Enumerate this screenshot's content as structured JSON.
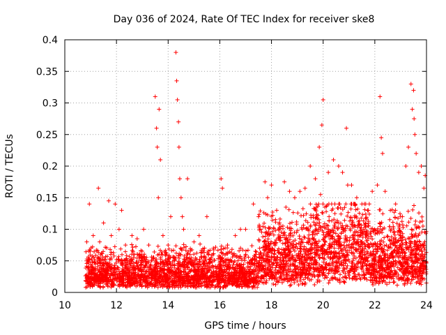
{
  "chart_data": {
    "type": "scatter",
    "title": "Day 036 of 2024, Rate Of TEC Index for receiver ske8",
    "xlabel": "GPS time / hours",
    "ylabel": "ROTI / TECUs",
    "xlim": [
      10,
      24
    ],
    "ylim": [
      0,
      0.4
    ],
    "x_ticks": [
      10,
      12,
      14,
      16,
      18,
      20,
      22,
      24
    ],
    "x_tick_labels": [
      "10",
      "12",
      "14",
      "16",
      "18",
      "20",
      "22",
      "24"
    ],
    "y_ticks": [
      0,
      0.05,
      0.1,
      0.15,
      0.2,
      0.25,
      0.3,
      0.35,
      0.4
    ],
    "y_tick_labels": [
      "0",
      "0.05",
      "0.1",
      "0.15",
      "0.2",
      "0.25",
      "0.3",
      "0.35",
      "0.4"
    ],
    "grid": true,
    "marker": "+",
    "series_color": "#ff0000",
    "series": [
      {
        "name": "ROTI",
        "x": [
          10.85,
          10.95,
          11.1,
          11.3,
          11.35,
          11.5,
          11.7,
          11.8,
          11.95,
          12.1,
          12.2,
          12.35,
          12.6,
          12.8,
          13.05,
          13.25,
          13.5,
          13.55,
          13.58,
          13.62,
          13.65,
          13.7,
          13.8,
          14.0,
          14.1,
          14.3,
          14.33,
          14.36,
          14.4,
          14.42,
          14.45,
          14.5,
          14.55,
          14.6,
          14.75,
          15.0,
          15.2,
          15.5,
          15.75,
          16.05,
          16.1,
          16.3,
          16.6,
          16.8,
          17.0,
          17.3,
          17.5,
          17.75,
          17.85,
          18.0,
          18.2,
          18.5,
          18.7,
          18.9,
          19.1,
          19.3,
          19.5,
          19.7,
          19.85,
          19.9,
          19.95,
          20.0,
          20.2,
          20.4,
          20.6,
          20.75,
          20.9,
          20.95,
          21.1,
          21.3,
          21.5,
          21.75,
          21.9,
          22.1,
          22.2,
          22.25,
          22.3,
          22.4,
          22.6,
          22.8,
          23.0,
          23.2,
          23.3,
          23.4,
          23.45,
          23.5,
          23.52,
          23.55,
          23.6,
          23.7,
          23.8,
          23.9,
          23.95
        ],
        "y": [
          0.08,
          0.14,
          0.09,
          0.165,
          0.08,
          0.11,
          0.145,
          0.09,
          0.14,
          0.1,
          0.13,
          0.075,
          0.09,
          0.085,
          0.1,
          0.075,
          0.31,
          0.26,
          0.23,
          0.15,
          0.29,
          0.21,
          0.09,
          0.075,
          0.12,
          0.38,
          0.335,
          0.305,
          0.27,
          0.23,
          0.18,
          0.15,
          0.12,
          0.1,
          0.18,
          0.08,
          0.09,
          0.12,
          0.07,
          0.18,
          0.165,
          0.075,
          0.09,
          0.1,
          0.1,
          0.14,
          0.12,
          0.175,
          0.15,
          0.17,
          0.13,
          0.175,
          0.16,
          0.15,
          0.16,
          0.165,
          0.2,
          0.18,
          0.23,
          0.155,
          0.265,
          0.305,
          0.19,
          0.21,
          0.2,
          0.19,
          0.26,
          0.17,
          0.17,
          0.15,
          0.14,
          0.13,
          0.16,
          0.17,
          0.31,
          0.245,
          0.22,
          0.16,
          0.13,
          0.13,
          0.12,
          0.2,
          0.23,
          0.33,
          0.29,
          0.32,
          0.275,
          0.25,
          0.22,
          0.19,
          0.2,
          0.165,
          0.185
        ]
      }
    ]
  }
}
